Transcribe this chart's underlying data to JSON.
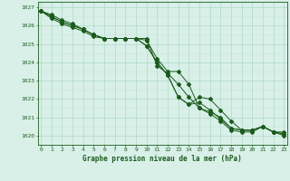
{
  "title": "Graphe pression niveau de la mer (hPa)",
  "background_color": "#d8f0e8",
  "grid_major_color": "#b0d8c8",
  "grid_minor_color": "#c8e8d8",
  "line_color": "#1a5c1a",
  "xlim": [
    -0.3,
    23.3
  ],
  "ylim": [
    1019.5,
    1027.3
  ],
  "yticks": [
    1020,
    1021,
    1022,
    1023,
    1024,
    1025,
    1026,
    1027
  ],
  "xticks": [
    0,
    1,
    2,
    3,
    4,
    5,
    6,
    7,
    8,
    9,
    10,
    11,
    12,
    13,
    14,
    15,
    16,
    17,
    18,
    19,
    20,
    21,
    22,
    23
  ],
  "series": [
    [
      1026.8,
      1026.6,
      1026.3,
      1026.1,
      1025.8,
      1025.5,
      1025.3,
      1025.3,
      1025.3,
      1025.3,
      1024.9,
      1024.0,
      1023.3,
      1022.1,
      1021.7,
      1021.8,
      1021.4,
      1020.9,
      1020.4,
      1020.3,
      1020.3,
      1020.5,
      1020.2,
      1020.1
    ],
    [
      1026.8,
      1026.5,
      1026.2,
      1026.0,
      1025.8,
      1025.5,
      1025.3,
      1025.3,
      1025.3,
      1025.3,
      1025.3,
      1023.8,
      1023.4,
      1022.8,
      1022.1,
      1021.5,
      1021.3,
      1021.0,
      1020.4,
      1020.3,
      1020.3,
      1020.5,
      1020.2,
      1020.2
    ],
    [
      1026.8,
      1026.5,
      1026.2,
      1026.0,
      1025.8,
      1025.5,
      1025.3,
      1025.3,
      1025.3,
      1025.3,
      1024.9,
      1024.0,
      1023.3,
      1022.1,
      1021.7,
      1022.1,
      1022.0,
      1021.4,
      1020.8,
      1020.3,
      1020.3,
      1020.5,
      1020.2,
      1020.1
    ],
    [
      1026.8,
      1026.4,
      1026.1,
      1025.9,
      1025.7,
      1025.4,
      1025.3,
      1025.3,
      1025.3,
      1025.3,
      1025.2,
      1024.2,
      1023.5,
      1023.5,
      1022.8,
      1021.5,
      1021.2,
      1020.8,
      1020.3,
      1020.2,
      1020.2,
      1020.5,
      1020.2,
      1020.0
    ]
  ]
}
